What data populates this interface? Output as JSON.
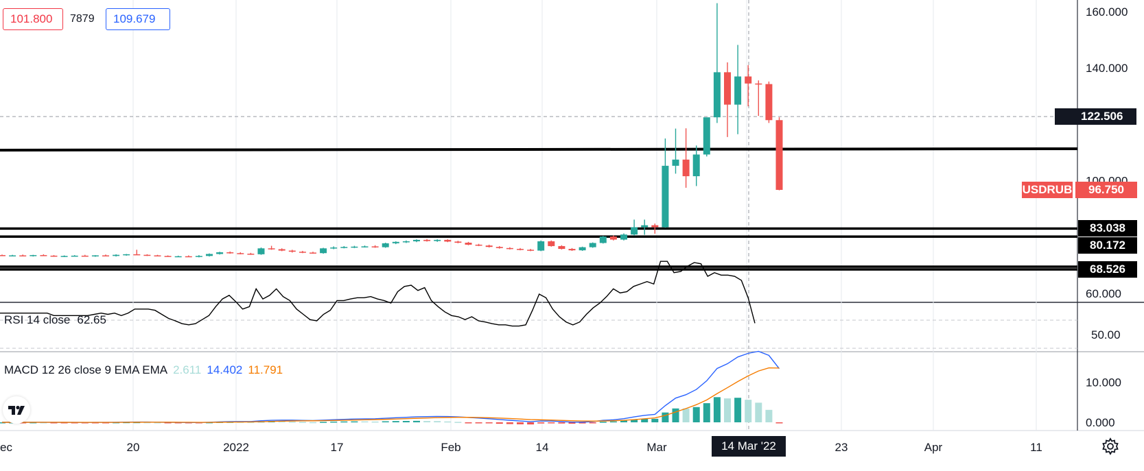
{
  "header": {
    "low_value": "101.800",
    "volume": "7879",
    "high_value": "109.679"
  },
  "price_scale": {
    "ticks": [
      "160.000",
      "140.000",
      "100.000",
      "60.000"
    ],
    "crosshair_price": "122.506",
    "symbol": "USDRUB",
    "last_price": "96.750",
    "level_labels": [
      "83.038",
      "80.172",
      "68.526"
    ]
  },
  "rsi": {
    "label": "RSI 14 close",
    "value": "62.65",
    "ticks": [
      "50.00"
    ]
  },
  "macd": {
    "label": "MACD 12 26 close 9 EMA EMA",
    "histogram_value": "2.611",
    "macd_value": "14.402",
    "signal_value": "11.791",
    "ticks": [
      "10.000",
      "0.000"
    ]
  },
  "time_axis": {
    "labels": [
      "ec",
      "20",
      "2022",
      "17",
      "Feb",
      "14",
      "Mar",
      "23",
      "Apr",
      "11"
    ],
    "crosshair_date": "14 Mar '22"
  },
  "colors": {
    "up": "#26a69a",
    "down": "#ef5350",
    "macd": "#2962ff",
    "signal": "#f57c00",
    "hist_strong": "#26a69a",
    "hist_weak": "#b2dfdb",
    "hist_neg": "#ef5350"
  },
  "icons": {
    "logo": "tradingview-logo-icon",
    "settings": "gear-icon",
    "crosshair": "plus-circle-icon"
  },
  "chart_data": {
    "type": "candlestick",
    "symbol": "USDRUB",
    "ylim": [
      55,
      165
    ],
    "horizontal_levels": [
      110.5,
      83.038,
      80.172,
      69.5,
      68.526
    ],
    "candles": [
      {
        "o": 73.6,
        "h": 73.8,
        "l": 73.3,
        "c": 73.4
      },
      {
        "o": 73.4,
        "h": 73.7,
        "l": 73.2,
        "c": 73.5
      },
      {
        "o": 73.5,
        "h": 73.8,
        "l": 73.2,
        "c": 73.3
      },
      {
        "o": 73.3,
        "h": 73.7,
        "l": 73.1,
        "c": 73.6
      },
      {
        "o": 73.6,
        "h": 73.9,
        "l": 73.3,
        "c": 73.4
      },
      {
        "o": 73.4,
        "h": 73.6,
        "l": 73.0,
        "c": 73.2
      },
      {
        "o": 73.2,
        "h": 73.5,
        "l": 72.9,
        "c": 73.3
      },
      {
        "o": 73.3,
        "h": 73.6,
        "l": 73.1,
        "c": 73.4
      },
      {
        "o": 73.4,
        "h": 73.7,
        "l": 73.1,
        "c": 73.2
      },
      {
        "o": 73.2,
        "h": 73.6,
        "l": 73.0,
        "c": 73.5
      },
      {
        "o": 73.5,
        "h": 73.8,
        "l": 73.2,
        "c": 73.3
      },
      {
        "o": 73.3,
        "h": 73.9,
        "l": 73.1,
        "c": 73.7
      },
      {
        "o": 73.7,
        "h": 74.0,
        "l": 73.4,
        "c": 73.9
      },
      {
        "o": 73.9,
        "h": 75.5,
        "l": 73.6,
        "c": 73.7
      },
      {
        "o": 73.7,
        "h": 73.9,
        "l": 73.3,
        "c": 73.5
      },
      {
        "o": 73.5,
        "h": 73.7,
        "l": 73.2,
        "c": 73.3
      },
      {
        "o": 73.3,
        "h": 73.5,
        "l": 73.0,
        "c": 73.1
      },
      {
        "o": 73.1,
        "h": 73.4,
        "l": 72.9,
        "c": 73.2
      },
      {
        "o": 73.2,
        "h": 73.5,
        "l": 72.9,
        "c": 73.0
      },
      {
        "o": 73.0,
        "h": 73.6,
        "l": 72.8,
        "c": 73.3
      },
      {
        "o": 73.3,
        "h": 74.2,
        "l": 73.1,
        "c": 74.0
      },
      {
        "o": 74.0,
        "h": 74.8,
        "l": 73.8,
        "c": 74.6
      },
      {
        "o": 74.6,
        "h": 74.9,
        "l": 74.1,
        "c": 74.3
      },
      {
        "o": 74.3,
        "h": 74.6,
        "l": 73.9,
        "c": 74.1
      },
      {
        "o": 74.1,
        "h": 74.4,
        "l": 73.7,
        "c": 73.9
      },
      {
        "o": 73.9,
        "h": 76.3,
        "l": 73.7,
        "c": 76.0
      },
      {
        "o": 76.0,
        "h": 76.9,
        "l": 75.5,
        "c": 75.7
      },
      {
        "o": 75.7,
        "h": 76.0,
        "l": 75.0,
        "c": 75.2
      },
      {
        "o": 75.2,
        "h": 75.5,
        "l": 74.5,
        "c": 74.8
      },
      {
        "o": 74.8,
        "h": 75.1,
        "l": 74.3,
        "c": 74.5
      },
      {
        "o": 74.5,
        "h": 74.8,
        "l": 74.1,
        "c": 74.3
      },
      {
        "o": 74.3,
        "h": 76.2,
        "l": 74.1,
        "c": 76.0
      },
      {
        "o": 76.0,
        "h": 76.7,
        "l": 75.7,
        "c": 76.3
      },
      {
        "o": 76.3,
        "h": 76.8,
        "l": 76.0,
        "c": 76.5
      },
      {
        "o": 76.5,
        "h": 76.9,
        "l": 76.1,
        "c": 76.6
      },
      {
        "o": 76.6,
        "h": 77.0,
        "l": 76.3,
        "c": 76.7
      },
      {
        "o": 76.7,
        "h": 77.1,
        "l": 76.2,
        "c": 76.4
      },
      {
        "o": 76.4,
        "h": 78.0,
        "l": 76.2,
        "c": 77.8
      },
      {
        "o": 77.8,
        "h": 78.5,
        "l": 77.5,
        "c": 78.3
      },
      {
        "o": 78.3,
        "h": 78.8,
        "l": 77.9,
        "c": 78.5
      },
      {
        "o": 78.5,
        "h": 79.2,
        "l": 78.2,
        "c": 79.0
      },
      {
        "o": 79.0,
        "h": 79.3,
        "l": 78.4,
        "c": 78.6
      },
      {
        "o": 78.6,
        "h": 79.2,
        "l": 78.3,
        "c": 79.0
      },
      {
        "o": 79.0,
        "h": 79.2,
        "l": 78.2,
        "c": 78.4
      },
      {
        "o": 78.4,
        "h": 78.7,
        "l": 77.8,
        "c": 78.0
      },
      {
        "o": 78.0,
        "h": 78.3,
        "l": 77.1,
        "c": 77.3
      },
      {
        "o": 77.3,
        "h": 77.6,
        "l": 76.8,
        "c": 77.0
      },
      {
        "o": 77.0,
        "h": 77.3,
        "l": 76.3,
        "c": 76.5
      },
      {
        "o": 76.5,
        "h": 76.8,
        "l": 75.9,
        "c": 76.1
      },
      {
        "o": 76.1,
        "h": 76.4,
        "l": 75.6,
        "c": 75.8
      },
      {
        "o": 75.8,
        "h": 76.1,
        "l": 75.3,
        "c": 75.5
      },
      {
        "o": 75.5,
        "h": 75.8,
        "l": 75.0,
        "c": 75.2
      },
      {
        "o": 75.2,
        "h": 78.8,
        "l": 75.0,
        "c": 78.5
      },
      {
        "o": 78.5,
        "h": 78.8,
        "l": 76.6,
        "c": 76.8
      },
      {
        "o": 76.8,
        "h": 77.1,
        "l": 75.6,
        "c": 75.8
      },
      {
        "o": 75.8,
        "h": 76.1,
        "l": 75.1,
        "c": 75.3
      },
      {
        "o": 75.3,
        "h": 76.6,
        "l": 75.1,
        "c": 76.4
      },
      {
        "o": 76.4,
        "h": 78.1,
        "l": 76.2,
        "c": 77.9
      },
      {
        "o": 77.9,
        "h": 80.4,
        "l": 77.7,
        "c": 80.2
      },
      {
        "o": 80.2,
        "h": 80.6,
        "l": 78.8,
        "c": 79.1
      },
      {
        "o": 79.1,
        "h": 81.3,
        "l": 78.8,
        "c": 80.9
      },
      {
        "o": 80.9,
        "h": 86.2,
        "l": 80.5,
        "c": 83.5
      },
      {
        "o": 83.5,
        "h": 86.2,
        "l": 80.8,
        "c": 84.2
      },
      {
        "o": 84.2,
        "h": 84.8,
        "l": 81.2,
        "c": 83.5
      },
      {
        "o": 83.5,
        "h": 115.0,
        "l": 83.3,
        "c": 105.3
      },
      {
        "o": 105.3,
        "h": 118.5,
        "l": 102.5,
        "c": 107.5
      },
      {
        "o": 107.5,
        "h": 118.6,
        "l": 97.5,
        "c": 101.6
      },
      {
        "o": 101.6,
        "h": 112.5,
        "l": 98.1,
        "c": 109.3
      },
      {
        "o": 109.3,
        "h": 121.5,
        "l": 108.6,
        "c": 122.5
      },
      {
        "o": 122.5,
        "h": 163.0,
        "l": 120.5,
        "c": 138.5
      },
      {
        "o": 138.5,
        "h": 142.0,
        "l": 115.5,
        "c": 127.0
      },
      {
        "o": 127.0,
        "h": 148.2,
        "l": 116.5,
        "c": 137.0
      },
      {
        "o": 137.0,
        "h": 141.0,
        "l": 126.4,
        "c": 134.5
      },
      {
        "o": 134.5,
        "h": 135.6,
        "l": 123.0,
        "c": 134.3
      },
      {
        "o": 134.3,
        "h": 135.2,
        "l": 120.5,
        "c": 121.5
      },
      {
        "o": 121.5,
        "h": 122.5,
        "l": 96.6,
        "c": 96.75
      }
    ],
    "rsi_values": [
      55.3,
      55.3,
      55.3,
      55.3,
      55.3,
      55.3,
      55.3,
      55.3,
      54.7,
      54.7,
      54.7,
      54.7,
      54.7,
      54.7,
      55.0,
      55.3,
      55.0,
      55.3,
      54.7,
      55.3,
      56.3,
      56.3,
      56.3,
      56.0,
      55.0,
      54.0,
      53.4,
      52.7,
      52.4,
      52.7,
      53.7,
      54.7,
      56.9,
      58.8,
      59.7,
      58.1,
      56.3,
      56.9,
      61.3,
      58.8,
      59.7,
      61.3,
      59.4,
      58.4,
      56.3,
      55.0,
      53.7,
      53.4,
      55.0,
      56.0,
      58.4,
      58.4,
      58.8,
      59.1,
      59.1,
      59.4,
      58.8,
      58.4,
      57.8,
      60.6,
      61.9,
      62.2,
      60.9,
      61.6,
      58.4,
      56.9,
      55.6,
      54.7,
      54.4,
      53.7,
      54.4,
      53.4,
      53.1,
      52.7,
      52.4,
      52.4,
      52.1,
      52.1,
      52.4,
      56.0,
      60.0,
      59.1,
      56.3,
      54.4,
      53.1,
      52.4,
      53.1,
      55.0,
      56.6,
      57.8,
      59.4,
      61.3,
      60.3,
      60.6,
      61.9,
      62.5,
      63.1,
      62.5,
      68.1,
      68.1,
      65.3,
      65.6,
      66.9,
      67.8,
      67.5,
      64.4,
      65.3,
      64.7,
      64.7,
      64.4,
      63.4,
      59.1,
      52.8
    ]
  }
}
